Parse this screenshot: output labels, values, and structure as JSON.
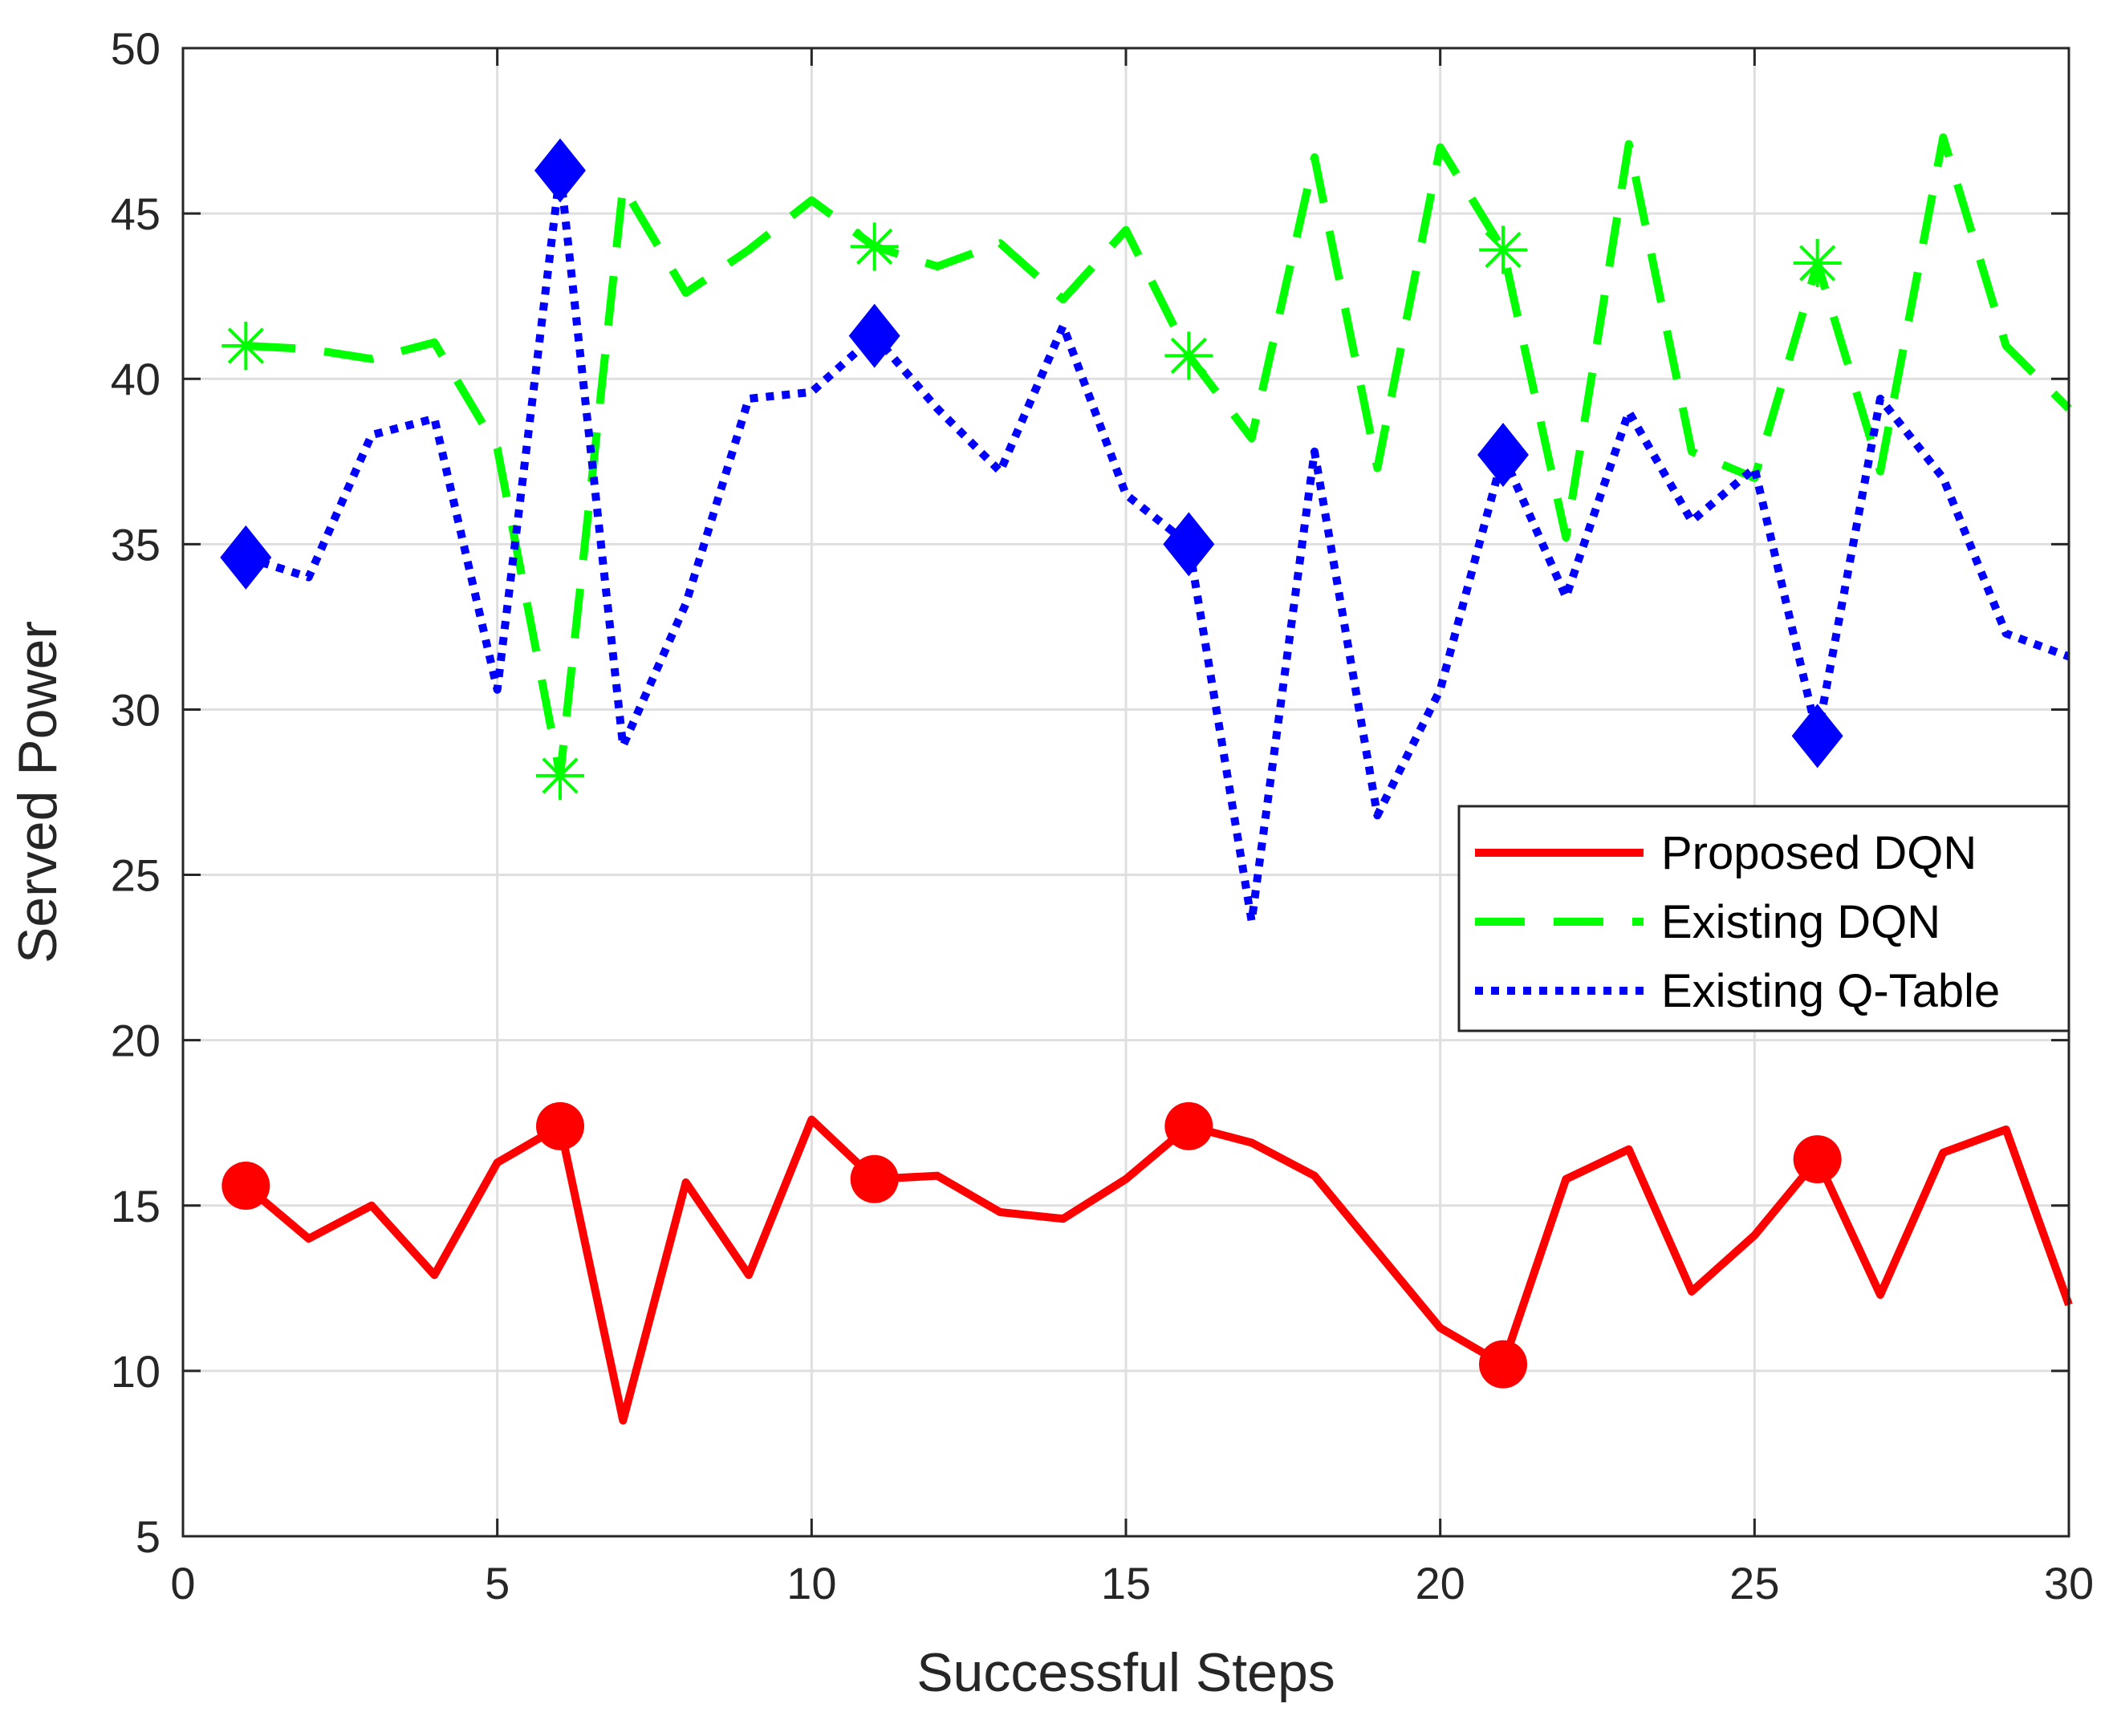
{
  "chart_data": {
    "type": "line",
    "title": "",
    "xlabel": "Successful Steps",
    "ylabel": "Served Power",
    "xlim": [
      0,
      30
    ],
    "ylim": [
      5,
      50
    ],
    "xticks": [
      0,
      5,
      10,
      15,
      20,
      25,
      30
    ],
    "yticks": [
      5,
      10,
      15,
      20,
      25,
      30,
      35,
      40,
      45,
      50
    ],
    "grid": true,
    "legend_position": "middle-right",
    "x": [
      1,
      2,
      3,
      4,
      5,
      6,
      7,
      8,
      9,
      10,
      11,
      12,
      13,
      14,
      15,
      16,
      17,
      18,
      19,
      20,
      21,
      22,
      23,
      24,
      25,
      26,
      27,
      28,
      29,
      30
    ],
    "series": [
      {
        "name": "Proposed DQN",
        "color": "#ff0000",
        "line_style": "solid",
        "marker": "circle",
        "marker_every": 5,
        "values": [
          15.6,
          14.0,
          15.0,
          12.9,
          16.3,
          17.4,
          8.5,
          15.7,
          12.9,
          17.6,
          15.8,
          15.9,
          14.8,
          14.6,
          15.8,
          17.4,
          16.9,
          15.9,
          13.6,
          11.3,
          10.2,
          15.8,
          16.7,
          12.4,
          14.1,
          16.4,
          12.3,
          16.6,
          17.3,
          12.0
        ]
      },
      {
        "name": "Existing DQN",
        "color": "#00ff00",
        "line_style": "dashed",
        "marker": "asterisk",
        "marker_every": 5,
        "values": [
          41.0,
          40.9,
          40.6,
          41.1,
          37.9,
          28.0,
          45.8,
          42.6,
          43.9,
          45.4,
          44.0,
          43.4,
          44.1,
          42.4,
          44.5,
          40.7,
          38.2,
          46.7,
          37.3,
          47.0,
          43.9,
          35.2,
          47.1,
          37.8,
          37.0,
          43.5,
          37.2,
          47.3,
          41.0,
          39.1
        ]
      },
      {
        "name": "Existing Q-Table",
        "color": "#0000ff",
        "line_style": "dotted",
        "marker": "diamond",
        "marker_every": 5,
        "values": [
          34.6,
          34.0,
          38.3,
          38.8,
          30.6,
          46.3,
          28.9,
          33.2,
          39.4,
          39.6,
          41.3,
          39.1,
          37.2,
          41.6,
          36.5,
          35.0,
          23.6,
          37.8,
          26.8,
          30.6,
          37.7,
          33.4,
          39.0,
          35.7,
          37.3,
          29.2,
          39.4,
          37.0,
          32.3,
          31.6
        ]
      }
    ]
  }
}
